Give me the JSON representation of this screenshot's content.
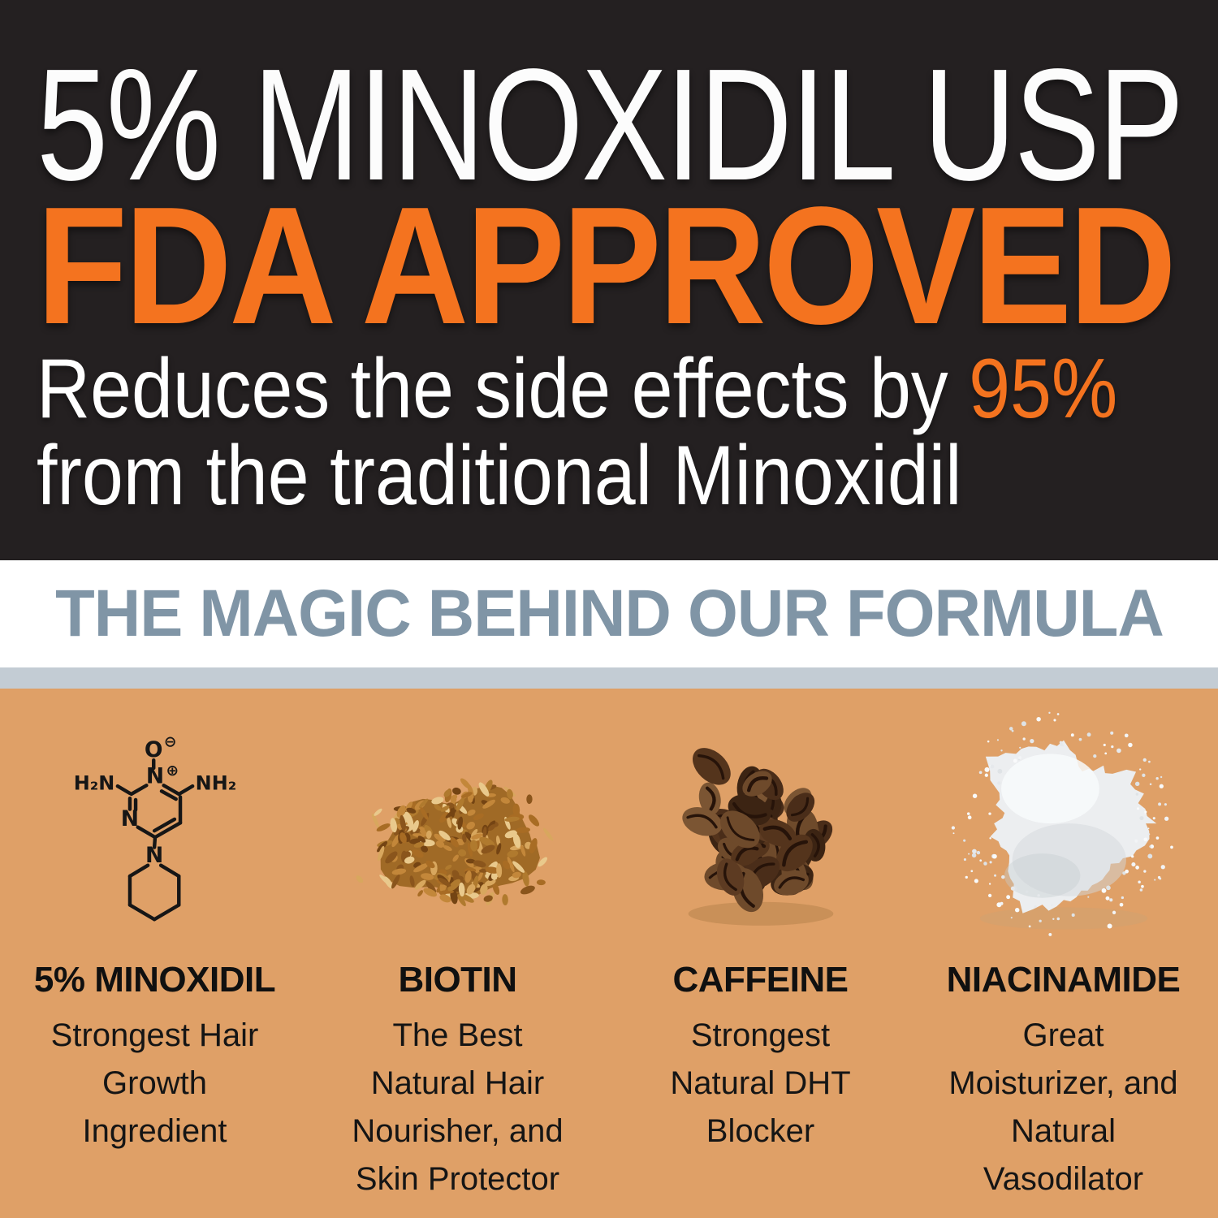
{
  "hero": {
    "title": "5% MINOXIDIL USP",
    "subtitle": "FDA APPROVED",
    "description": {
      "prefix": "Reduces the side effects by ",
      "highlight": "95%",
      "line2": "from the traditional Minoxidil"
    }
  },
  "formula": {
    "heading": "THE MAGIC BEHIND OUR FORMULA"
  },
  "ingredients": [
    {
      "icon": "minoxidil-molecule-structure-icon",
      "name": "5% MINOXIDIL",
      "lines": [
        "Strongest Hair",
        "Growth",
        "Ingredient"
      ]
    },
    {
      "icon": "oat-flakes-pile-icon",
      "name": "BIOTIN",
      "lines": [
        "The Best",
        "Natural Hair",
        "Nourisher, and",
        "Skin Protector"
      ]
    },
    {
      "icon": "coffee-beans-pile-icon",
      "name": "CAFFEINE",
      "lines": [
        "Strongest",
        "Natural DHT",
        "Blocker"
      ]
    },
    {
      "icon": "white-powder-pile-icon",
      "name": "NIACINAMIDE",
      "lines": [
        "Great",
        "Moisturizer, and",
        "Natural",
        "Vasodilator"
      ]
    }
  ],
  "molecule": {
    "oxide": "O",
    "oxide_charge": "⊖",
    "ring_n_top": "N",
    "ring_n_top_charge": "⊕",
    "amine_left": "H₂N",
    "amine_right": "NH₂",
    "ring_n_left": "N",
    "piperidine_n": "N"
  },
  "colors": {
    "hero_background": "#242021",
    "accent_orange": "#f4731f",
    "hero_text": "#ffffff",
    "formula_heading": "#8095a6",
    "divider_bar": "#c3ccd4",
    "panel_background": "#dfa067",
    "ink": "#161616"
  },
  "art": {
    "oats": {
      "base": "#a06a26",
      "palette": [
        "#c3873a",
        "#a86c24",
        "#8a551c",
        "#d8a75e",
        "#e9c98c",
        "#744413",
        "#b07a2e"
      ],
      "shadow": "#a97943"
    },
    "beans": {
      "palette": [
        "#4a2d19",
        "#5d3b22",
        "#6e4a2b",
        "#3c2413",
        "#7b5533",
        "#54341c"
      ],
      "crease": "#261309",
      "shadow": "#a87943"
    },
    "powder": {
      "base": "#eceef0",
      "shade": "#d3d8db",
      "deep": "#c6ccd0",
      "light": "#f8fafb",
      "specks": [
        "#f2f4f6",
        "#e6e9ec",
        "#f9fafb",
        "#dfe3e6"
      ],
      "shadow": "#c9a476"
    }
  }
}
